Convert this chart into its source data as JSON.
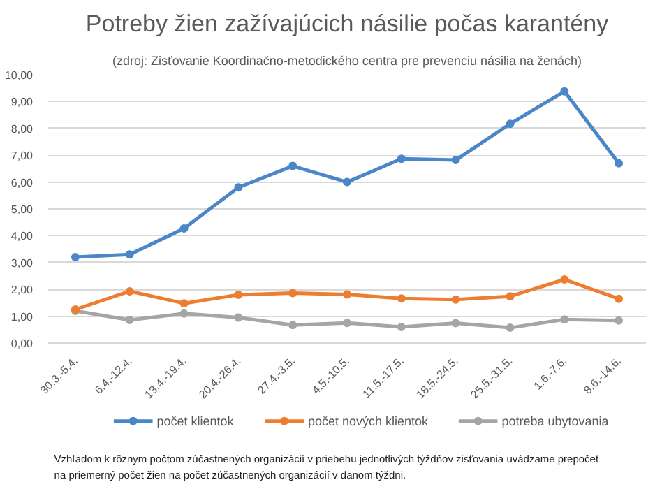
{
  "chart_data": {
    "type": "line",
    "title": "Potreby žien zažívajúcich násilie počas karantény",
    "subtitle": "(zdroj: Zisťovanie Koordinačno-metodického centra pre prevenciu násilia na ženách)",
    "categories": [
      "30.3.-5.4.",
      "6.4.-12.4.",
      "13.4.-19.4.",
      "20.4.-26.4.",
      "27.4.-3.5.",
      "4.5.-10.5.",
      "11.5.-17.5.",
      "18.5.-24.5.",
      "25.5.-31.5.",
      "1.6.-7.6.",
      "8.6.-14.6."
    ],
    "series": [
      {
        "name": "počet klientok",
        "color": "#4a86c8",
        "values": [
          3.2,
          3.3,
          4.27,
          5.8,
          6.6,
          6.0,
          6.87,
          6.82,
          8.17,
          9.38,
          6.7
        ]
      },
      {
        "name": "počet nových klientok",
        "color": "#ed7d31",
        "values": [
          1.25,
          1.93,
          1.48,
          1.8,
          1.86,
          1.81,
          1.66,
          1.62,
          1.74,
          2.37,
          1.65
        ]
      },
      {
        "name": "potreba ubytovania",
        "color": "#a5a5a5",
        "values": [
          1.2,
          0.86,
          1.1,
          0.95,
          0.67,
          0.75,
          0.6,
          0.74,
          0.57,
          0.88,
          0.84
        ]
      }
    ],
    "ylim": [
      0,
      10
    ],
    "yticks": [
      {
        "value": 0,
        "label": "0,00"
      },
      {
        "value": 1,
        "label": "1,00"
      },
      {
        "value": 2,
        "label": "2,00"
      },
      {
        "value": 3,
        "label": "3,00"
      },
      {
        "value": 4,
        "label": "4,00"
      },
      {
        "value": 5,
        "label": "5,00"
      },
      {
        "value": 6,
        "label": "6,00"
      },
      {
        "value": 7,
        "label": "7,00"
      },
      {
        "value": 8,
        "label": "8,00"
      },
      {
        "value": 9,
        "label": "9,00"
      },
      {
        "value": 10,
        "label": "10,00"
      }
    ],
    "grid": "y",
    "legend": "bottom",
    "marker": "circle",
    "line_style": "solid",
    "annotations": [
      "Vzhľadom k rôznym počtom zúčastnených organizácií v priebehu jednotlivých týždňov zisťovania uvádzame prepočet na priemerný počet žien na počet zúčastnených organizácií v danom týždni."
    ]
  }
}
